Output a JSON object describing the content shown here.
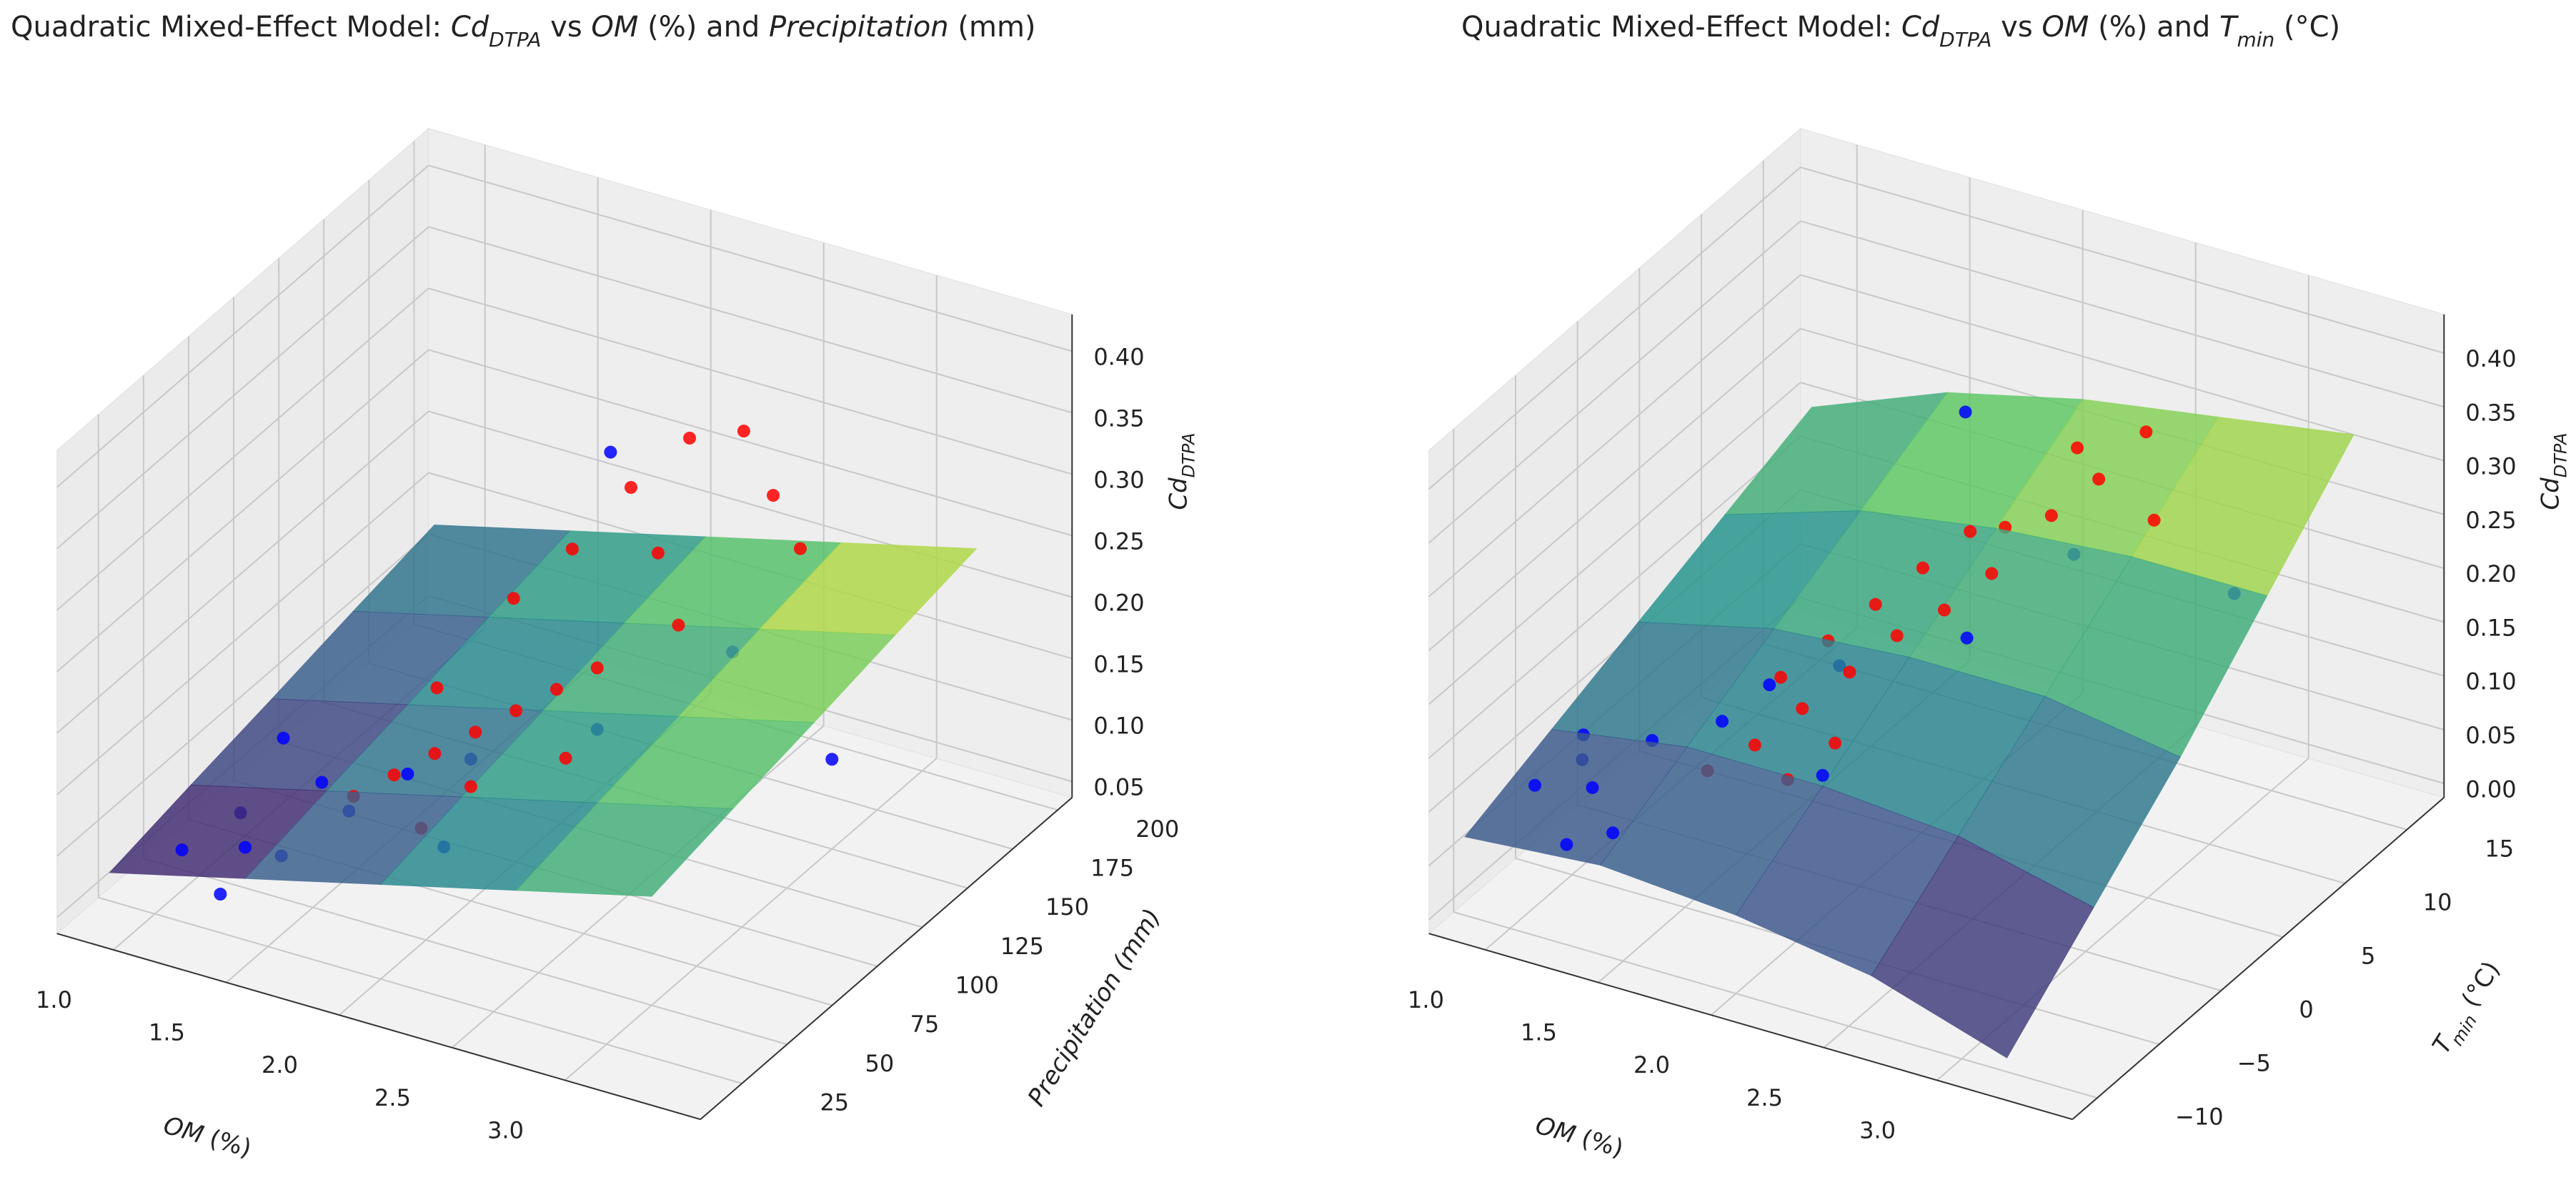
{
  "chart_data": [
    {
      "type": "surface3d",
      "title": [
        {
          "text": "Quadratic Mixed-Effect Model: ",
          "style": "normal"
        },
        {
          "text": "Cd",
          "style": "italic"
        },
        {
          "text": "DTPA",
          "style": "sub"
        },
        {
          "text": " vs ",
          "style": "normal"
        },
        {
          "text": "OM",
          "style": "italic"
        },
        {
          "text": " (%) and ",
          "style": "normal"
        },
        {
          "text": "Precipitation",
          "style": "italic"
        },
        {
          "text": " (mm)",
          "style": "normal"
        }
      ],
      "xlabel": [
        {
          "text": "OM",
          "style": "italic"
        },
        {
          "text": " (%)",
          "style": "normal"
        }
      ],
      "ylabel": [
        {
          "text": "Precipitation (mm)",
          "style": "italic"
        }
      ],
      "zlabel": [
        {
          "text": "Cd",
          "style": "italic"
        },
        {
          "text": "DTPA",
          "style": "sub"
        }
      ],
      "xlim": [
        0.75,
        3.6
      ],
      "ylim": [
        2,
        208
      ],
      "zlim": [
        0.037,
        0.43
      ],
      "xticks": [
        {
          "value": 1,
          "label": "1.0"
        },
        1.5,
        {
          "value": 2,
          "label": "2.0"
        },
        2.5,
        {
          "value": 3,
          "label": "3.0"
        }
      ],
      "yticks": [
        25,
        50,
        75,
        100,
        125,
        150,
        175,
        200
      ],
      "zticks": [
        {
          "value": 0.05,
          "label": "0.05"
        },
        {
          "value": 0.1,
          "label": "0.10"
        },
        {
          "value": 0.15,
          "label": "0.15"
        },
        {
          "value": 0.2,
          "label": "0.20"
        },
        {
          "value": 0.25,
          "label": "0.25"
        },
        {
          "value": 0.3,
          "label": "0.30"
        },
        {
          "value": 0.35,
          "label": "0.35"
        },
        {
          "value": 0.4,
          "label": "0.40"
        }
      ],
      "surface": {
        "x": [
          0.8,
          1.4,
          2.0,
          2.6,
          3.2
        ],
        "y": [
          25,
          70,
          115,
          160,
          205
        ],
        "z": [
          [
            0.06,
            0.074,
            0.087,
            0.101,
            0.114
          ],
          [
            0.087,
            0.101,
            0.114,
            0.128,
            0.141
          ],
          [
            0.114,
            0.128,
            0.141,
            0.155,
            0.168
          ],
          [
            0.141,
            0.155,
            0.168,
            0.182,
            0.195
          ],
          [
            0.168,
            0.182,
            0.195,
            0.209,
            0.222
          ]
        ]
      },
      "series": [
        {
          "color": "#ff0000",
          "x": [
            1.6,
            1.7,
            1.8,
            1.9,
            2.0,
            2.1,
            2.2,
            1.75,
            1.85,
            1.95,
            2.05,
            2.3,
            2.4,
            2.5,
            1.65,
            2.15,
            2.25,
            1.9,
            2.0,
            2.7
          ],
          "y": [
            60,
            70,
            80,
            90,
            100,
            110,
            120,
            130,
            150,
            170,
            190,
            90,
            140,
            180,
            100,
            160,
            195,
            60,
            75,
            170
          ],
          "z": [
            0.12,
            0.13,
            0.14,
            0.15,
            0.16,
            0.17,
            0.18,
            0.2,
            0.22,
            0.25,
            0.27,
            0.15,
            0.2,
            0.26,
            0.16,
            0.22,
            0.28,
            0.11,
            0.13,
            0.24
          ]
        },
        {
          "color": "#0000ff",
          "x": [
            1.0,
            1.1,
            1.2,
            1.3,
            1.4,
            1.5,
            1.6,
            1.8,
            2.0,
            2.2,
            1.05,
            1.25,
            3.0,
            2.4,
            1.7
          ],
          "y": [
            40,
            60,
            50,
            80,
            45,
            70,
            90,
            100,
            60,
            120,
            90,
            30,
            150,
            170,
            190
          ],
          "z": [
            0.07,
            0.08,
            0.07,
            0.09,
            0.08,
            0.09,
            0.1,
            0.11,
            0.1,
            0.13,
            0.1,
            0.06,
            0.11,
            0.14,
            0.24
          ]
        }
      ]
    },
    {
      "type": "surface3d",
      "title": [
        {
          "text": "Quadratic Mixed-Effect Model: ",
          "style": "normal"
        },
        {
          "text": "Cd",
          "style": "italic"
        },
        {
          "text": "DTPA",
          "style": "sub"
        },
        {
          "text": " vs ",
          "style": "normal"
        },
        {
          "text": "OM",
          "style": "italic"
        },
        {
          "text": " (%) and ",
          "style": "normal"
        },
        {
          "text": "T",
          "style": "italic"
        },
        {
          "text": "min",
          "style": "sub"
        },
        {
          "text": " (°C)",
          "style": "normal"
        }
      ],
      "xlabel": [
        {
          "text": "OM",
          "style": "italic"
        },
        {
          "text": " (%)",
          "style": "normal"
        }
      ],
      "ylabel": [
        {
          "text": "T",
          "style": "italic"
        },
        {
          "text": "min",
          "style": "sub"
        },
        {
          "text": " (°C)",
          "style": "normal"
        }
      ],
      "zlabel": [
        {
          "text": "Cd",
          "style": "italic"
        },
        {
          "text": "DTPA",
          "style": "sub"
        }
      ],
      "xlim": [
        0.75,
        3.6
      ],
      "ylim": [
        -12,
        18
      ],
      "zlim": [
        -0.013,
        0.436
      ],
      "xticks": [
        {
          "value": 1,
          "label": "1.0"
        },
        1.5,
        {
          "value": 2,
          "label": "2.0"
        },
        2.5,
        {
          "value": 3,
          "label": "3.0"
        }
      ],
      "yticks": [
        {
          "value": -10,
          "label": "−10"
        },
        {
          "value": -5,
          "label": "−5"
        },
        0,
        5,
        10,
        15
      ],
      "zticks": [
        {
          "value": 0,
          "label": "0.00"
        },
        {
          "value": 0.05,
          "label": "0.05"
        },
        {
          "value": 0.1,
          "label": "0.10"
        },
        {
          "value": 0.15,
          "label": "0.15"
        },
        {
          "value": 0.2,
          "label": "0.20"
        },
        {
          "value": 0.25,
          "label": "0.25"
        },
        {
          "value": 0.3,
          "label": "0.30"
        },
        {
          "value": 0.35,
          "label": "0.35"
        },
        {
          "value": 0.4,
          "label": "0.40"
        }
      ],
      "surface": {
        "x": [
          0.8,
          1.4,
          2.0,
          2.6,
          3.2
        ],
        "y": [
          -10,
          -3,
          4,
          11,
          18
        ],
        "z": [
          [
            0.06,
            0.09,
            0.12,
            0.15,
            0.18
          ],
          [
            0.07,
            0.11,
            0.15,
            0.19,
            0.23
          ],
          [
            0.06,
            0.11,
            0.16,
            0.21,
            0.26
          ],
          [
            0.04,
            0.1,
            0.16,
            0.22,
            0.28
          ],
          [
            0.0,
            0.07,
            0.14,
            0.22,
            0.3
          ]
        ]
      },
      "series": [
        {
          "color": "#ff0000",
          "x": [
            1.6,
            1.7,
            1.8,
            1.9,
            2.0,
            2.1,
            2.2,
            1.75,
            1.85,
            1.95,
            2.05,
            2.3,
            2.4,
            2.5,
            1.65,
            2.15,
            2.25,
            1.9,
            2.0,
            2.7
          ],
          "y": [
            -5,
            -3,
            -1,
            1,
            3,
            5,
            7,
            2,
            4,
            6,
            8,
            10,
            12,
            14,
            0,
            9,
            13,
            -4,
            -2,
            11
          ],
          "z": [
            0.12,
            0.13,
            0.15,
            0.17,
            0.19,
            0.2,
            0.22,
            0.18,
            0.2,
            0.22,
            0.24,
            0.25,
            0.27,
            0.3,
            0.16,
            0.24,
            0.28,
            0.12,
            0.14,
            0.26
          ]
        },
        {
          "color": "#0000ff",
          "x": [
            1.0,
            1.1,
            1.2,
            1.3,
            1.4,
            1.5,
            1.6,
            1.8,
            2.0,
            2.2,
            1.05,
            1.25,
            3.0,
            2.4,
            1.7
          ],
          "y": [
            -8,
            -6,
            -7,
            -4,
            -9,
            -2,
            0,
            2,
            -3,
            5,
            -5,
            -10,
            12,
            10,
            14
          ],
          "z": [
            0.1,
            0.11,
            0.1,
            0.12,
            0.09,
            0.13,
            0.15,
            0.16,
            0.12,
            0.18,
            0.12,
            0.08,
            0.2,
            0.22,
            0.27
          ]
        }
      ]
    }
  ]
}
